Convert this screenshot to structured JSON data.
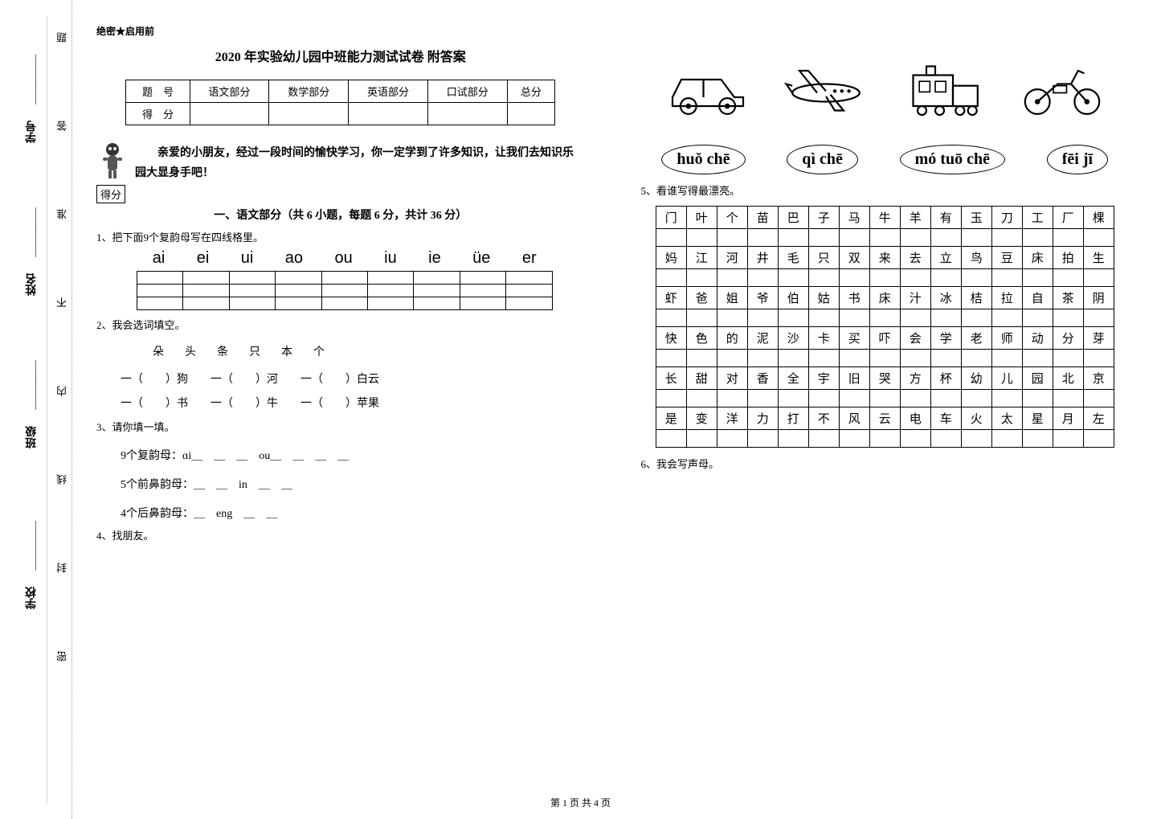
{
  "confidential": "绝密★启用前",
  "title": "2020 年实验幼儿园中班能力测试试卷  附答案",
  "scoreHeaders": [
    "题　号",
    "语文部分",
    "数学部分",
    "英语部分",
    "口试部分",
    "总分"
  ],
  "scoreRow2": "得　分",
  "intro": "亲爱的小朋友，经过一段时间的愉快学习，你一定学到了许多知识，让我们去知识乐园大显身手吧！",
  "scoreBoxLabel": "得分",
  "sectionHeader": "一、语文部分（共 6 小题，每题 6 分，共计 36 分）",
  "q1": "1、把下面9个复韵母写在四线格里。",
  "pinyinList": [
    "ai",
    "ei",
    "ui",
    "ao",
    "ou",
    "iu",
    "ie",
    "üe",
    "er"
  ],
  "q2": "2、我会选词填空。",
  "wordBank": "朵　头　条　只　本　个",
  "fillA": "一（　　）狗　　一（　　）河　　一（　　）白云",
  "fillB": "一（　　）书　　一（　　）牛　　一（　　）苹果",
  "q3": "3、请你填一填。",
  "q3a": "9个复韵母：ɑi＿　＿　＿　ou＿　＿　＿　＿",
  "q3b": "5个前鼻韵母：＿　＿　in　＿　＿",
  "q3c": "4个后鼻韵母：＿　eng　＿　＿",
  "q4": "4、找朋友。",
  "pinyinLabels": [
    "huǒ chē",
    "qì chē",
    "mó tuō chē",
    "fēi jī"
  ],
  "q5": "5、看谁写得最漂亮。",
  "charRows": [
    [
      "门",
      "叶",
      "个",
      "苗",
      "巴",
      "子",
      "马",
      "牛",
      "羊",
      "有",
      "玉",
      "刀",
      "工",
      "厂",
      "棵"
    ],
    [
      "妈",
      "江",
      "河",
      "井",
      "毛",
      "只",
      "双",
      "来",
      "去",
      "立",
      "鸟",
      "豆",
      "床",
      "拍",
      "生"
    ],
    [
      "虾",
      "爸",
      "姐",
      "爷",
      "伯",
      "姑",
      "书",
      "床",
      "汁",
      "冰",
      "桔",
      "拉",
      "自",
      "茶",
      "阴"
    ],
    [
      "快",
      "色",
      "的",
      "泥",
      "沙",
      "卡",
      "买",
      "吓",
      "会",
      "学",
      "老",
      "师",
      "动",
      "分",
      "芽"
    ],
    [
      "长",
      "甜",
      "对",
      "香",
      "全",
      "宇",
      "旧",
      "哭",
      "方",
      "杯",
      "幼",
      "儿",
      "园",
      "北",
      "京"
    ],
    [
      "是",
      "变",
      "洋",
      "力",
      "打",
      "不",
      "风",
      "云",
      "电",
      "车",
      "火",
      "太",
      "星",
      "月",
      "左"
    ]
  ],
  "q6": "6、我会写声母。",
  "binding": {
    "school": "学校",
    "class": "班级",
    "name": "姓名",
    "id": "学号",
    "markers": [
      "密",
      "封",
      "线",
      "内",
      "不",
      "准",
      "答",
      "题"
    ]
  },
  "footer": "第 1 页  共 4 页"
}
